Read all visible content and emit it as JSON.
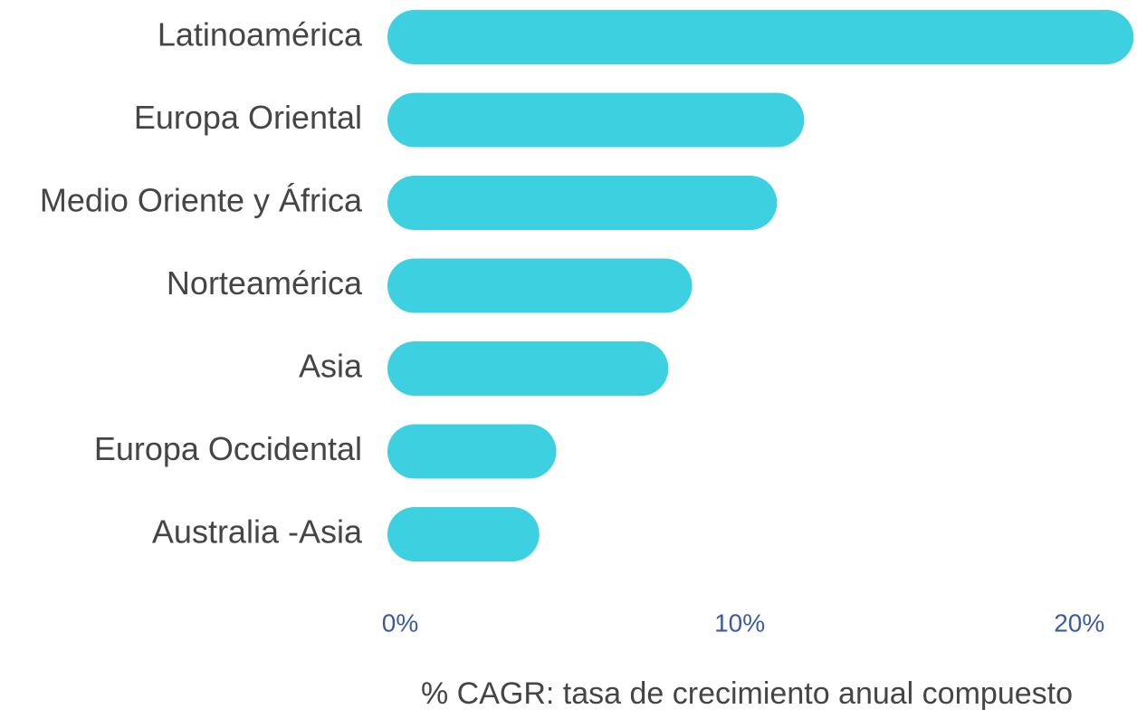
{
  "chart_data": {
    "type": "bar",
    "orientation": "horizontal",
    "categories": [
      "Latinoamérica",
      "Europa Oriental",
      "Medio Oriente y África",
      "Norteamérica",
      "Asia",
      "Europa Occidental",
      "Australia -Asia"
    ],
    "values": [
      21.6,
      11.9,
      11.1,
      8.6,
      7.9,
      4.6,
      4.1
    ],
    "color": "#3dd0e0",
    "xlim": [
      0,
      21.7
    ],
    "xticks": [
      {
        "value": 0,
        "label": "0%"
      },
      {
        "value": 10,
        "label": "10%"
      },
      {
        "value": 20,
        "label": "20%"
      }
    ],
    "xlabel": "% CAGR: tasa de crecimiento anual compuesto",
    "grid": false
  }
}
